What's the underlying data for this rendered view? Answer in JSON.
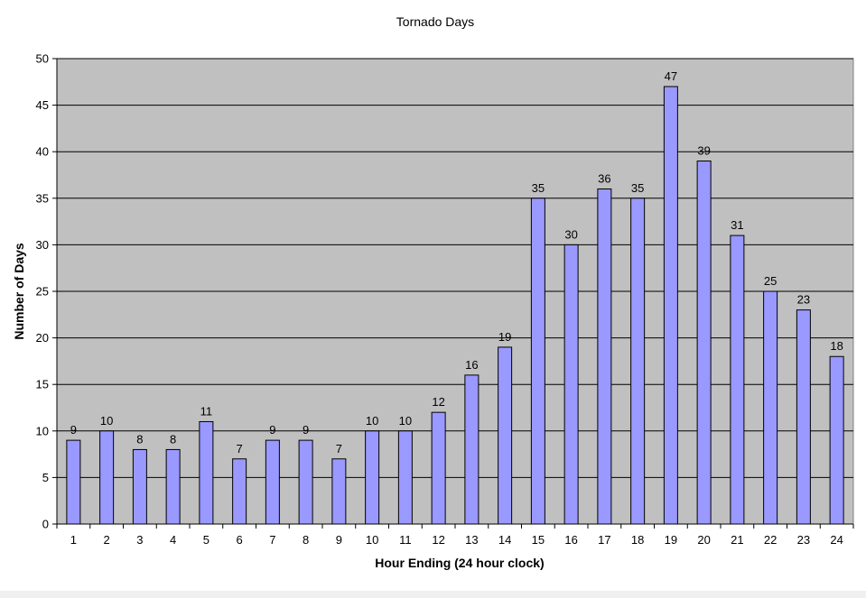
{
  "chart_data": {
    "type": "bar",
    "title": "Tornado Days",
    "xlabel": "Hour Ending (24 hour clock)",
    "ylabel": "Number of Days",
    "categories": [
      "1",
      "2",
      "3",
      "4",
      "5",
      "6",
      "7",
      "8",
      "9",
      "10",
      "11",
      "12",
      "13",
      "14",
      "15",
      "16",
      "17",
      "18",
      "19",
      "20",
      "21",
      "22",
      "23",
      "24"
    ],
    "values": [
      9,
      10,
      8,
      8,
      11,
      7,
      9,
      9,
      7,
      10,
      10,
      12,
      16,
      19,
      35,
      30,
      36,
      35,
      47,
      39,
      31,
      25,
      23,
      18
    ],
    "ylim": [
      0,
      50
    ],
    "yticks": [
      "0",
      "5",
      "10",
      "15",
      "20",
      "25",
      "30",
      "35",
      "40",
      "45",
      "50"
    ],
    "grid": true,
    "data_labels": true,
    "colors": {
      "bar_fill": "#9999ff",
      "bar_stroke": "#000000",
      "plot_background": "#c0c0c0",
      "gridline": "#000000"
    }
  }
}
